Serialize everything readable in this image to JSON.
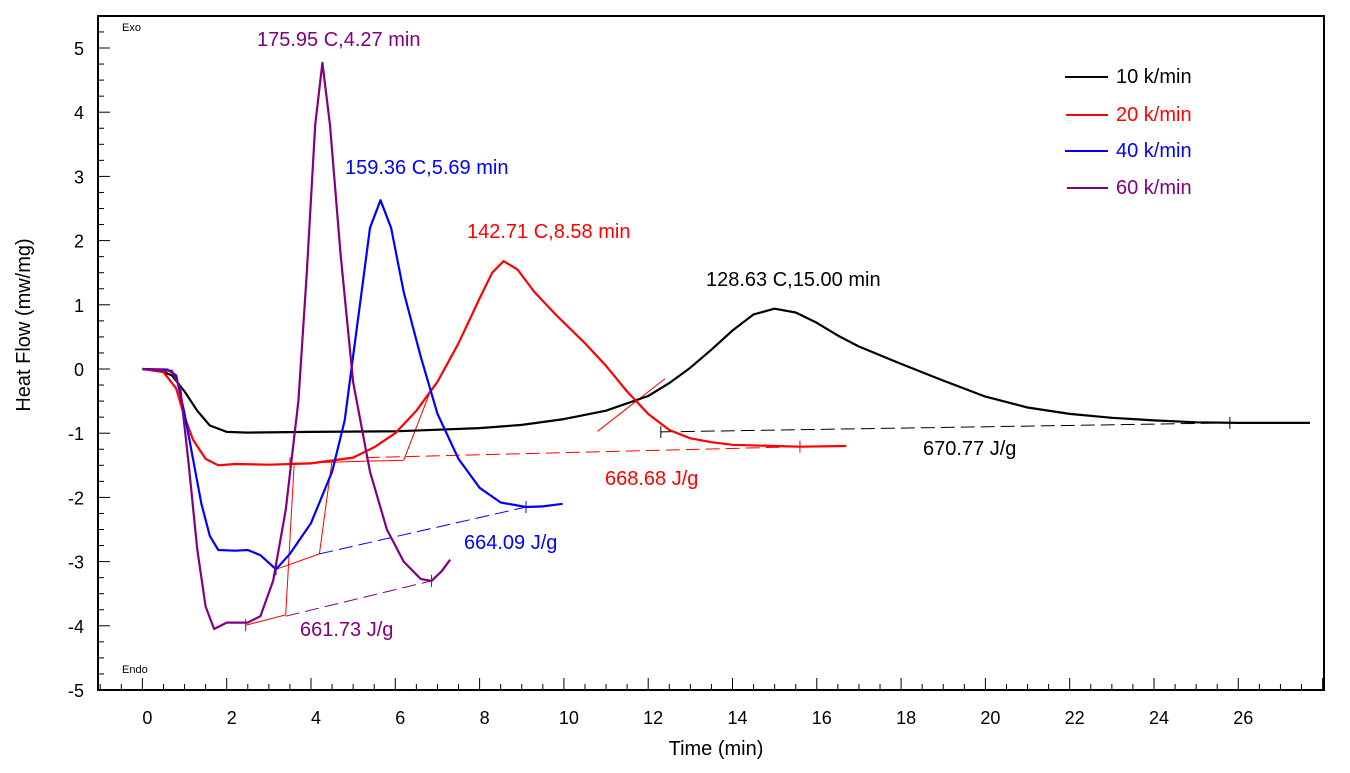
{
  "chart_data": {
    "type": "line",
    "title": "",
    "xlabel": "Time (min)",
    "ylabel": "Heat Flow (mw/mg)",
    "xlim": [
      -1.06,
      28.0
    ],
    "ylim": [
      -5,
      5.5
    ],
    "xticks": [
      0,
      2,
      4,
      6,
      8,
      10,
      12,
      14,
      16,
      18,
      20,
      22,
      24,
      26
    ],
    "xtick_labels": [
      "0",
      "2",
      "4",
      "6",
      "8",
      "10",
      "12",
      "14",
      "16",
      "18",
      "20",
      "22",
      "24",
      "26"
    ],
    "yticks": [
      -5,
      -4,
      -3,
      -2,
      -1,
      0,
      1,
      2,
      3,
      4,
      5
    ],
    "ytick_labels": [
      "-5",
      "-4",
      "-3",
      "-2",
      "-1",
      "0",
      "1",
      "2",
      "3",
      "4",
      "5"
    ],
    "x_minor_step": 0.5,
    "y_minor_step": 0.25,
    "grid": false,
    "corner_labels": {
      "top": "Exo",
      "bottom": "Endo"
    },
    "legend": {
      "position": "top-right"
    },
    "series": [
      {
        "name": "10 k/min",
        "color": "#000000",
        "points": [
          [
            0,
            0
          ],
          [
            0.4,
            -0.02
          ],
          [
            0.7,
            -0.1
          ],
          [
            1.0,
            -0.35
          ],
          [
            1.3,
            -0.65
          ],
          [
            1.6,
            -0.88
          ],
          [
            2.0,
            -0.98
          ],
          [
            2.5,
            -0.99
          ],
          [
            4,
            -0.98
          ],
          [
            6,
            -0.97
          ],
          [
            8,
            -0.92
          ],
          [
            9,
            -0.87
          ],
          [
            10,
            -0.78
          ],
          [
            11,
            -0.65
          ],
          [
            12,
            -0.42
          ],
          [
            12.5,
            -0.22
          ],
          [
            13,
            0.02
          ],
          [
            13.5,
            0.3
          ],
          [
            14,
            0.6
          ],
          [
            14.5,
            0.85
          ],
          [
            15,
            0.94
          ],
          [
            15.5,
            0.88
          ],
          [
            16,
            0.72
          ],
          [
            16.5,
            0.52
          ],
          [
            17,
            0.35
          ],
          [
            18,
            0.08
          ],
          [
            19,
            -0.18
          ],
          [
            20,
            -0.43
          ],
          [
            21,
            -0.6
          ],
          [
            22,
            -0.7
          ],
          [
            23,
            -0.76
          ],
          [
            24,
            -0.8
          ],
          [
            25,
            -0.83
          ],
          [
            26,
            -0.84
          ],
          [
            27.7,
            -0.84
          ]
        ],
        "peak_label": "128.63 C,15.00 min",
        "enthalpy_label": "670.77 J/g",
        "baseline": [
          [
            12.3,
            -0.98
          ],
          [
            25.8,
            -0.84
          ]
        ],
        "baseline_start_marker": [
          12.3,
          -0.98
        ],
        "baseline_end_marker": [
          25.8,
          -0.84
        ]
      },
      {
        "name": "20 k/min",
        "color": "#ff0000",
        "points": [
          [
            0,
            0
          ],
          [
            0.5,
            -0.05
          ],
          [
            0.8,
            -0.3
          ],
          [
            1.0,
            -0.75
          ],
          [
            1.2,
            -1.1
          ],
          [
            1.5,
            -1.4
          ],
          [
            1.8,
            -1.5
          ],
          [
            2.2,
            -1.48
          ],
          [
            3,
            -1.49
          ],
          [
            4,
            -1.47
          ],
          [
            5,
            -1.38
          ],
          [
            5.5,
            -1.22
          ],
          [
            6,
            -1.0
          ],
          [
            6.5,
            -0.65
          ],
          [
            7,
            -0.2
          ],
          [
            7.5,
            0.4
          ],
          [
            8,
            1.1
          ],
          [
            8.3,
            1.5
          ],
          [
            8.57,
            1.68
          ],
          [
            8.9,
            1.55
          ],
          [
            9.3,
            1.2
          ],
          [
            9.8,
            0.85
          ],
          [
            10.5,
            0.4
          ],
          [
            11,
            0.05
          ],
          [
            11.5,
            -0.35
          ],
          [
            12,
            -0.7
          ],
          [
            12.5,
            -0.95
          ],
          [
            13,
            -1.08
          ],
          [
            13.5,
            -1.14
          ],
          [
            14,
            -1.18
          ],
          [
            15,
            -1.2
          ],
          [
            15.6,
            -1.21
          ],
          [
            16.7,
            -1.2
          ]
        ],
        "peak_label": "142.71 C,8.58 min",
        "enthalpy_label": "668.68 J/g",
        "baseline": [
          [
            5.3,
            -1.38
          ],
          [
            15.6,
            -1.21
          ]
        ],
        "baseline_start_marker": [
          3.5,
          -1.47
        ],
        "baseline_end_marker": [
          15.6,
          -1.21
        ]
      },
      {
        "name": "40 k/min",
        "color": "#0000ff",
        "points": [
          [
            0,
            0
          ],
          [
            0.6,
            -0.01
          ],
          [
            0.8,
            -0.1
          ],
          [
            1.0,
            -0.7
          ],
          [
            1.2,
            -1.4
          ],
          [
            1.4,
            -2.1
          ],
          [
            1.6,
            -2.6
          ],
          [
            1.8,
            -2.82
          ],
          [
            2.2,
            -2.83
          ],
          [
            2.5,
            -2.82
          ],
          [
            2.8,
            -2.9
          ],
          [
            3.17,
            -3.12
          ],
          [
            3.5,
            -2.88
          ],
          [
            4,
            -2.4
          ],
          [
            4.5,
            -1.6
          ],
          [
            4.8,
            -0.8
          ],
          [
            5.0,
            0.2
          ],
          [
            5.2,
            1.2
          ],
          [
            5.4,
            2.2
          ],
          [
            5.65,
            2.63
          ],
          [
            5.9,
            2.2
          ],
          [
            6.2,
            1.2
          ],
          [
            6.6,
            0.2
          ],
          [
            7.0,
            -0.7
          ],
          [
            7.5,
            -1.4
          ],
          [
            8.0,
            -1.85
          ],
          [
            8.5,
            -2.08
          ],
          [
            9.1,
            -2.15
          ],
          [
            9.5,
            -2.14
          ],
          [
            9.97,
            -2.1
          ]
        ],
        "peak_label": "159.36 C,5.69 min",
        "enthalpy_label": "664.09 J/g",
        "baseline": [
          [
            4.2,
            -2.88
          ],
          [
            9.1,
            -2.15
          ]
        ],
        "baseline_start_marker": [
          3.17,
          -3.12
        ],
        "baseline_end_marker": [
          9.1,
          -2.15
        ]
      },
      {
        "name": "60 k/min",
        "color": "#800080",
        "points": [
          [
            0,
            0
          ],
          [
            0.7,
            -0.03
          ],
          [
            0.9,
            -0.3
          ],
          [
            1.1,
            -1.5
          ],
          [
            1.3,
            -2.8
          ],
          [
            1.5,
            -3.7
          ],
          [
            1.7,
            -4.05
          ],
          [
            2.0,
            -3.95
          ],
          [
            2.3,
            -3.95
          ],
          [
            2.5,
            -3.95
          ],
          [
            2.8,
            -3.85
          ],
          [
            3.1,
            -3.3
          ],
          [
            3.4,
            -2.2
          ],
          [
            3.7,
            -0.5
          ],
          [
            3.9,
            1.5
          ],
          [
            4.1,
            3.8
          ],
          [
            4.27,
            4.77
          ],
          [
            4.45,
            3.8
          ],
          [
            4.7,
            1.8
          ],
          [
            5.0,
            -0.2
          ],
          [
            5.4,
            -1.6
          ],
          [
            5.8,
            -2.5
          ],
          [
            6.2,
            -3.0
          ],
          [
            6.6,
            -3.27
          ],
          [
            6.86,
            -3.3
          ],
          [
            7.1,
            -3.15
          ],
          [
            7.3,
            -2.97
          ]
        ],
        "peak_label": "175.95 C,4.27 min",
        "enthalpy_label": "661.73 J/g",
        "baseline": [
          [
            3.4,
            -3.85
          ],
          [
            6.86,
            -3.3
          ]
        ],
        "baseline_start_marker": [
          2.45,
          -3.99
        ],
        "baseline_end_marker": [
          6.86,
          -3.3
        ]
      }
    ],
    "construction_lines": [
      {
        "color": "#ff0000",
        "points": [
          [
            2.45,
            -3.99
          ],
          [
            3.4,
            -3.83
          ],
          [
            3.6,
            -1.5
          ]
        ]
      },
      {
        "color": "#ff0000",
        "points": [
          [
            3.17,
            -3.12
          ],
          [
            4.2,
            -2.88
          ],
          [
            4.5,
            -1.42
          ]
        ]
      },
      {
        "color": "#ff0000",
        "points": [
          [
            3.5,
            -1.47
          ],
          [
            6.2,
            -1.42
          ],
          [
            6.8,
            -0.4
          ]
        ]
      },
      {
        "color": "#ff0000",
        "points": [
          [
            10.8,
            -0.97
          ],
          [
            12.4,
            -0.15
          ]
        ]
      }
    ]
  }
}
